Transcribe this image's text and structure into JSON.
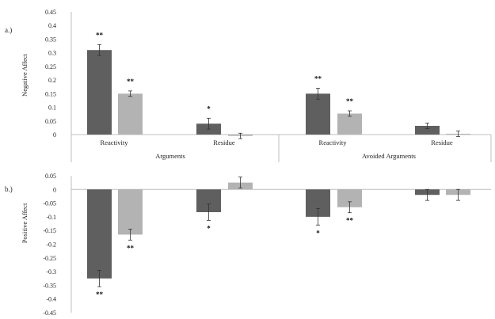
{
  "chart_data": [
    {
      "type": "bar",
      "panel_label": "a.)",
      "ylabel": "Negative Affect",
      "ylim": [
        0,
        0.45
      ],
      "yticks": [
        "0.45",
        "0.4",
        "0.35",
        "0.3",
        "0.25",
        "0.2",
        "0.15",
        "0.1",
        "0.05",
        "0"
      ],
      "groups": [
        "Arguments",
        "Avoided Arguments"
      ],
      "categories": [
        "Reactivity",
        "Residue",
        "Reactivity",
        "Residue"
      ],
      "colors": [
        "#5f5f5f",
        "#b3b3b3"
      ],
      "bars": [
        {
          "value": 0.31,
          "error": 0.02,
          "series": 0,
          "sig": "**"
        },
        {
          "value": 0.15,
          "error": 0.01,
          "series": 1,
          "sig": "**"
        },
        {
          "value": 0.04,
          "error": 0.02,
          "series": 0,
          "sig": "*"
        },
        {
          "value": -0.005,
          "error": 0.01,
          "series": 1,
          "sig": ""
        },
        {
          "value": 0.15,
          "error": 0.02,
          "series": 0,
          "sig": "**"
        },
        {
          "value": 0.077,
          "error": 0.01,
          "series": 1,
          "sig": "**"
        },
        {
          "value": 0.032,
          "error": 0.01,
          "series": 0,
          "sig": ""
        },
        {
          "value": 0.003,
          "error": 0.01,
          "series": 1,
          "sig": ""
        }
      ]
    },
    {
      "type": "bar",
      "panel_label": "b.)",
      "ylabel": "Positive Affect",
      "ylim": [
        -0.45,
        0.05
      ],
      "yticks": [
        "0.05",
        "0",
        "-0.05",
        "-0.1",
        "-0.15",
        "-0.2",
        "-0.25",
        "-0.3",
        "-0.35",
        "-0.4",
        "-0.45"
      ],
      "colors": [
        "#5f5f5f",
        "#b3b3b3"
      ],
      "bars": [
        {
          "value": -0.325,
          "error": 0.03,
          "series": 0,
          "sig": "**"
        },
        {
          "value": -0.165,
          "error": 0.02,
          "series": 1,
          "sig": "**"
        },
        {
          "value": -0.083,
          "error": 0.03,
          "series": 0,
          "sig": "*"
        },
        {
          "value": 0.025,
          "error": 0.02,
          "series": 1,
          "sig": ""
        },
        {
          "value": -0.1,
          "error": 0.03,
          "series": 0,
          "sig": "*"
        },
        {
          "value": -0.065,
          "error": 0.02,
          "series": 1,
          "sig": "**"
        },
        {
          "value": -0.02,
          "error": 0.02,
          "series": 0,
          "sig": ""
        },
        {
          "value": -0.02,
          "error": 0.02,
          "series": 1,
          "sig": ""
        }
      ]
    }
  ]
}
